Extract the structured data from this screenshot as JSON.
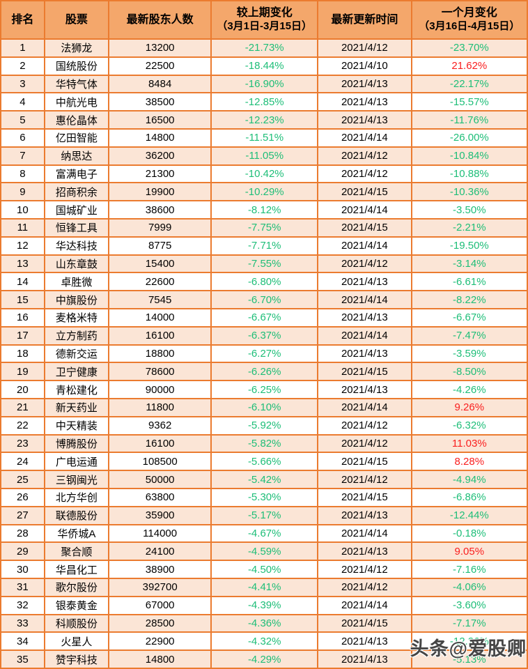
{
  "colors": {
    "border": "#EB7B2F",
    "header_bg": "#F4A76B",
    "alt_row": "#FBE5D6",
    "green": "#1EBE78",
    "red": "#FA1E1E",
    "text": "#000000",
    "watermark": "#454545"
  },
  "watermark": "头条@爱股卿",
  "chart_data": {
    "type": "table",
    "columns": [
      {
        "label": "排名",
        "sub": ""
      },
      {
        "label": "股票",
        "sub": ""
      },
      {
        "label": "最新股东人数",
        "sub": ""
      },
      {
        "label": "较上期变化",
        "sub": "（3月1日-3月15日）"
      },
      {
        "label": "最新更新时间",
        "sub": ""
      },
      {
        "label": "一个月变化",
        "sub": "（3月16日-4月15日）"
      }
    ],
    "rows": [
      [
        "1",
        "法狮龙",
        "13200",
        "-21.73%",
        "2021/4/12",
        "-23.70%"
      ],
      [
        "2",
        "国统股份",
        "22500",
        "-18.44%",
        "2021/4/10",
        "21.62%"
      ],
      [
        "3",
        "华特气体",
        "8484",
        "-16.90%",
        "2021/4/13",
        "-22.17%"
      ],
      [
        "4",
        "中航光电",
        "38500",
        "-12.85%",
        "2021/4/13",
        "-15.57%"
      ],
      [
        "5",
        "惠伦晶体",
        "16500",
        "-12.23%",
        "2021/4/13",
        "-11.76%"
      ],
      [
        "6",
        "亿田智能",
        "14800",
        "-11.51%",
        "2021/4/14",
        "-26.00%"
      ],
      [
        "7",
        "纳思达",
        "36200",
        "-11.05%",
        "2021/4/12",
        "-10.84%"
      ],
      [
        "8",
        "富满电子",
        "21300",
        "-10.42%",
        "2021/4/12",
        "-10.88%"
      ],
      [
        "9",
        "招商积余",
        "19900",
        "-10.29%",
        "2021/4/15",
        "-10.36%"
      ],
      [
        "10",
        "国城矿业",
        "38600",
        "-8.12%",
        "2021/4/14",
        "-3.50%"
      ],
      [
        "11",
        "恒锋工具",
        "7999",
        "-7.75%",
        "2021/4/15",
        "-2.21%"
      ],
      [
        "12",
        "华达科技",
        "8775",
        "-7.71%",
        "2021/4/14",
        "-19.50%"
      ],
      [
        "13",
        "山东章鼓",
        "15400",
        "-7.55%",
        "2021/4/12",
        "-3.14%"
      ],
      [
        "14",
        "卓胜微",
        "22600",
        "-6.80%",
        "2021/4/13",
        "-6.61%"
      ],
      [
        "15",
        "中旗股份",
        "7545",
        "-6.70%",
        "2021/4/14",
        "-8.22%"
      ],
      [
        "16",
        "麦格米特",
        "14000",
        "-6.67%",
        "2021/4/13",
        "-6.67%"
      ],
      [
        "17",
        "立方制药",
        "16100",
        "-6.37%",
        "2021/4/14",
        "-7.47%"
      ],
      [
        "18",
        "德新交运",
        "18800",
        "-6.27%",
        "2021/4/13",
        "-3.59%"
      ],
      [
        "19",
        "卫宁健康",
        "78600",
        "-6.26%",
        "2021/4/15",
        "-8.50%"
      ],
      [
        "20",
        "青松建化",
        "90000",
        "-6.25%",
        "2021/4/13",
        "-4.26%"
      ],
      [
        "21",
        "新天药业",
        "11800",
        "-6.10%",
        "2021/4/14",
        "9.26%"
      ],
      [
        "22",
        "中天精装",
        "9362",
        "-5.92%",
        "2021/4/12",
        "-6.32%"
      ],
      [
        "23",
        "博腾股份",
        "16100",
        "-5.82%",
        "2021/4/12",
        "11.03%"
      ],
      [
        "24",
        "广电运通",
        "108500",
        "-5.66%",
        "2021/4/15",
        "8.28%"
      ],
      [
        "25",
        "三钢闽光",
        "50000",
        "-5.42%",
        "2021/4/12",
        "-4.94%"
      ],
      [
        "26",
        "北方华创",
        "63800",
        "-5.30%",
        "2021/4/15",
        "-6.86%"
      ],
      [
        "27",
        "联德股份",
        "35900",
        "-5.17%",
        "2021/4/13",
        "-12.44%"
      ],
      [
        "28",
        "华侨城A",
        "114000",
        "-4.67%",
        "2021/4/14",
        "-0.18%"
      ],
      [
        "29",
        "聚合顺",
        "24100",
        "-4.59%",
        "2021/4/13",
        "9.05%"
      ],
      [
        "30",
        "华昌化工",
        "38900",
        "-4.50%",
        "2021/4/12",
        "-7.16%"
      ],
      [
        "31",
        "歌尔股份",
        "392700",
        "-4.41%",
        "2021/4/12",
        "-4.06%"
      ],
      [
        "32",
        "银泰黄金",
        "67000",
        "-4.39%",
        "2021/4/14",
        "-3.60%"
      ],
      [
        "33",
        "科顺股份",
        "28500",
        "-4.36%",
        "2021/4/15",
        "-7.17%"
      ],
      [
        "34",
        "火星人",
        "22900",
        "-4.32%",
        "2021/4/13",
        "-12.26%"
      ],
      [
        "35",
        "赞宇科技",
        "14800",
        "-4.29%",
        "2021/4/13",
        "-5.13%"
      ]
    ]
  }
}
